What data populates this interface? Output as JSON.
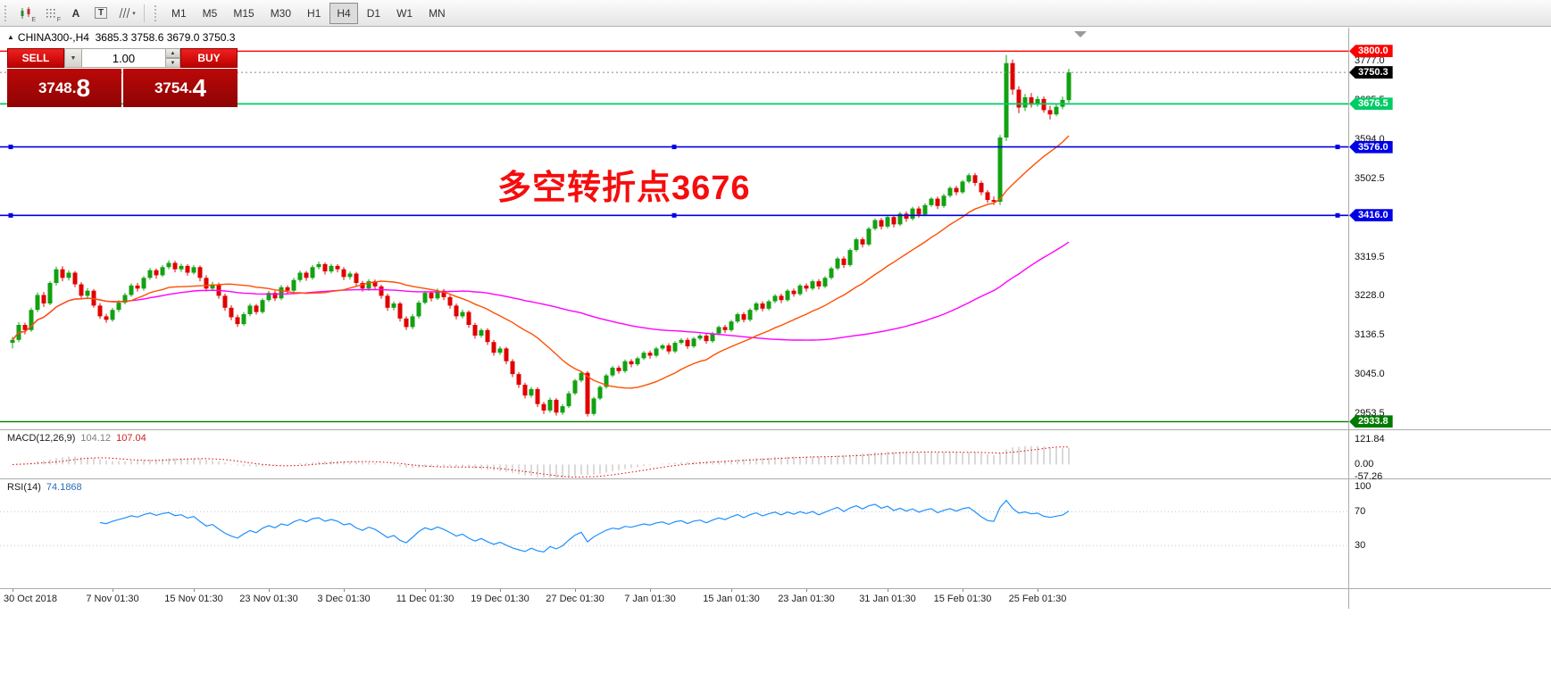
{
  "toolbar": {
    "icons": [
      {
        "name": "candlestick-chart-icon",
        "sub": "E"
      },
      {
        "name": "grid-icon",
        "sub": "F"
      },
      {
        "name": "text-label-icon",
        "glyph": "A"
      },
      {
        "name": "text-box-icon",
        "glyph": "T"
      },
      {
        "name": "cycle-lines-icon",
        "caret": true
      }
    ],
    "timeframes": [
      "M1",
      "M5",
      "M15",
      "M30",
      "H1",
      "H4",
      "D1",
      "W1",
      "MN"
    ],
    "active_timeframe": "H4"
  },
  "trade_panel": {
    "sell_label": "SELL",
    "buy_label": "BUY",
    "volume": "1.00",
    "bid": "3748.",
    "bid_big": "8",
    "ask": "3754.",
    "ask_big": "4"
  },
  "chart": {
    "symbol_period": "CHINA300-,H4",
    "ohlc_text": "3685.3 3758.6 3679.0 3750.3",
    "annotation": "多空转折点3676",
    "colors": {
      "up": "#12a112",
      "down": "#e00000",
      "ma_fast": "#ff4f00",
      "ma_slow": "#ff00ff"
    },
    "ma": {
      "fast_period": 20,
      "slow_period": 70
    },
    "price_axis_ticks": [
      {
        "v": 3777.0,
        "label": "3777.0"
      },
      {
        "v": 3685.5,
        "label": "3685.5"
      },
      {
        "v": 3594.0,
        "label": "3594.0"
      },
      {
        "v": 3502.5,
        "label": "3502.5"
      },
      {
        "v": 3319.5,
        "label": "3319.5"
      },
      {
        "v": 3228.0,
        "label": "3228.0"
      },
      {
        "v": 3136.5,
        "label": "3136.5"
      },
      {
        "v": 3045.0,
        "label": "3045.0"
      },
      {
        "v": 2953.5,
        "label": "2953.5"
      }
    ],
    "lines": [
      {
        "v": 3800.0,
        "label": "3800.0",
        "color": "#ff0000",
        "width": 1.4,
        "handles": false
      },
      {
        "v": 3676.5,
        "label": "3676.5",
        "color": "#00cc66",
        "width": 1.7,
        "handles": false
      },
      {
        "v": 3576.0,
        "label": "3576.0",
        "color": "#0000e6",
        "width": 1.6,
        "handles": true
      },
      {
        "v": 3416.0,
        "label": "3416.0",
        "color": "#0000e6",
        "width": 1.6,
        "handles": true
      },
      {
        "v": 2933.8,
        "label": "2933.8",
        "color": "#007a00",
        "width": 1.4,
        "handles": false
      }
    ],
    "current_price": {
      "v": 3750.3,
      "label": "3750.3",
      "color": "#000000"
    },
    "time_axis": [
      {
        "i": 0,
        "label": "30 Oct 2018"
      },
      {
        "i": 16,
        "label": "7 Nov 01:30"
      },
      {
        "i": 29,
        "label": "15 Nov 01:30"
      },
      {
        "i": 41,
        "label": "23 Nov 01:30"
      },
      {
        "i": 53,
        "label": "3 Dec 01:30"
      },
      {
        "i": 66,
        "label": "11 Dec 01:30"
      },
      {
        "i": 78,
        "label": "19 Dec 01:30"
      },
      {
        "i": 90,
        "label": "27 Dec 01:30"
      },
      {
        "i": 102,
        "label": "7 Jan 01:30"
      },
      {
        "i": 115,
        "label": "15 Jan 01:30"
      },
      {
        "i": 127,
        "label": "23 Jan 01:30"
      },
      {
        "i": 140,
        "label": "31 Jan 01:30"
      },
      {
        "i": 152,
        "label": "15 Feb 01:30"
      },
      {
        "i": 164,
        "label": "25 Feb 01:30"
      }
    ],
    "candles": [
      [
        3118,
        3132,
        3105,
        3125
      ],
      [
        3125,
        3166,
        3120,
        3160
      ],
      [
        3160,
        3165,
        3138,
        3148
      ],
      [
        3148,
        3200,
        3144,
        3195
      ],
      [
        3195,
        3236,
        3190,
        3230
      ],
      [
        3230,
        3237,
        3202,
        3210
      ],
      [
        3210,
        3262,
        3206,
        3258
      ],
      [
        3258,
        3296,
        3252,
        3290
      ],
      [
        3290,
        3297,
        3262,
        3270
      ],
      [
        3270,
        3288,
        3264,
        3282
      ],
      [
        3282,
        3286,
        3248,
        3255
      ],
      [
        3255,
        3260,
        3222,
        3228
      ],
      [
        3228,
        3246,
        3222,
        3240
      ],
      [
        3240,
        3244,
        3200,
        3205
      ],
      [
        3205,
        3211,
        3174,
        3180
      ],
      [
        3180,
        3186,
        3165,
        3172
      ],
      [
        3172,
        3200,
        3168,
        3195
      ],
      [
        3195,
        3218,
        3190,
        3212
      ],
      [
        3212,
        3235,
        3208,
        3230
      ],
      [
        3230,
        3257,
        3226,
        3252
      ],
      [
        3252,
        3258,
        3238,
        3245
      ],
      [
        3245,
        3274,
        3240,
        3270
      ],
      [
        3270,
        3293,
        3266,
        3288
      ],
      [
        3288,
        3292,
        3268,
        3276
      ],
      [
        3276,
        3300,
        3272,
        3295
      ],
      [
        3295,
        3311,
        3290,
        3305
      ],
      [
        3305,
        3310,
        3283,
        3290
      ],
      [
        3290,
        3303,
        3284,
        3298
      ],
      [
        3298,
        3302,
        3275,
        3282
      ],
      [
        3282,
        3300,
        3278,
        3295
      ],
      [
        3295,
        3299,
        3262,
        3270
      ],
      [
        3270,
        3276,
        3238,
        3245
      ],
      [
        3245,
        3261,
        3240,
        3255
      ],
      [
        3255,
        3259,
        3221,
        3228
      ],
      [
        3228,
        3233,
        3193,
        3200
      ],
      [
        3200,
        3206,
        3171,
        3178
      ],
      [
        3178,
        3184,
        3155,
        3162
      ],
      [
        3162,
        3190,
        3158,
        3185
      ],
      [
        3185,
        3210,
        3180,
        3205
      ],
      [
        3205,
        3209,
        3184,
        3190
      ],
      [
        3190,
        3222,
        3186,
        3218
      ],
      [
        3218,
        3240,
        3214,
        3235
      ],
      [
        3235,
        3240,
        3216,
        3222
      ],
      [
        3222,
        3253,
        3218,
        3248
      ],
      [
        3248,
        3252,
        3232,
        3240
      ],
      [
        3240,
        3270,
        3236,
        3265
      ],
      [
        3265,
        3287,
        3260,
        3282
      ],
      [
        3282,
        3286,
        3263,
        3270
      ],
      [
        3270,
        3300,
        3266,
        3295
      ],
      [
        3295,
        3308,
        3290,
        3302
      ],
      [
        3302,
        3306,
        3278,
        3285
      ],
      [
        3285,
        3303,
        3280,
        3298
      ],
      [
        3298,
        3302,
        3283,
        3290
      ],
      [
        3290,
        3295,
        3265,
        3272
      ],
      [
        3272,
        3285,
        3266,
        3280
      ],
      [
        3280,
        3284,
        3250,
        3258
      ],
      [
        3258,
        3263,
        3238,
        3245
      ],
      [
        3245,
        3267,
        3240,
        3262
      ],
      [
        3262,
        3266,
        3243,
        3250
      ],
      [
        3250,
        3254,
        3221,
        3228
      ],
      [
        3228,
        3233,
        3193,
        3200
      ],
      [
        3200,
        3215,
        3194,
        3210
      ],
      [
        3210,
        3214,
        3168,
        3175
      ],
      [
        3175,
        3180,
        3148,
        3155
      ],
      [
        3155,
        3185,
        3150,
        3180
      ],
      [
        3180,
        3217,
        3175,
        3212
      ],
      [
        3212,
        3240,
        3208,
        3235
      ],
      [
        3235,
        3239,
        3215,
        3222
      ],
      [
        3222,
        3245,
        3218,
        3240
      ],
      [
        3240,
        3244,
        3218,
        3225
      ],
      [
        3225,
        3230,
        3198,
        3205
      ],
      [
        3205,
        3210,
        3173,
        3180
      ],
      [
        3180,
        3196,
        3175,
        3190
      ],
      [
        3190,
        3194,
        3153,
        3160
      ],
      [
        3160,
        3165,
        3128,
        3135
      ],
      [
        3135,
        3152,
        3130,
        3148
      ],
      [
        3148,
        3152,
        3113,
        3120
      ],
      [
        3120,
        3125,
        3088,
        3095
      ],
      [
        3095,
        3110,
        3090,
        3105
      ],
      [
        3105,
        3109,
        3068,
        3075
      ],
      [
        3075,
        3080,
        3038,
        3045
      ],
      [
        3045,
        3050,
        3013,
        3020
      ],
      [
        3020,
        3025,
        2988,
        2995
      ],
      [
        2995,
        3015,
        2990,
        3010
      ],
      [
        3010,
        3014,
        2968,
        2975
      ],
      [
        2975,
        2980,
        2952,
        2960
      ],
      [
        2960,
        2990,
        2955,
        2985
      ],
      [
        2985,
        2989,
        2948,
        2955
      ],
      [
        2955,
        2975,
        2950,
        2970
      ],
      [
        2970,
        3005,
        2966,
        3000
      ],
      [
        3000,
        3034,
        2996,
        3030
      ],
      [
        3030,
        3052,
        3026,
        3048
      ],
      [
        3048,
        3052,
        2946,
        2952
      ],
      [
        2952,
        2992,
        2948,
        2988
      ],
      [
        2988,
        3019,
        2984,
        3015
      ],
      [
        3015,
        3046,
        3011,
        3042
      ],
      [
        3042,
        3064,
        3038,
        3060
      ],
      [
        3060,
        3065,
        3046,
        3052
      ],
      [
        3052,
        3079,
        3048,
        3075
      ],
      [
        3075,
        3080,
        3061,
        3068
      ],
      [
        3068,
        3086,
        3064,
        3082
      ],
      [
        3082,
        3099,
        3078,
        3095
      ],
      [
        3095,
        3100,
        3081,
        3088
      ],
      [
        3088,
        3109,
        3084,
        3105
      ],
      [
        3105,
        3116,
        3101,
        3112
      ],
      [
        3112,
        3117,
        3092,
        3098
      ],
      [
        3098,
        3122,
        3094,
        3118
      ],
      [
        3118,
        3129,
        3114,
        3125
      ],
      [
        3125,
        3130,
        3104,
        3110
      ],
      [
        3110,
        3132,
        3106,
        3128
      ],
      [
        3128,
        3139,
        3124,
        3135
      ],
      [
        3135,
        3140,
        3116,
        3122
      ],
      [
        3122,
        3144,
        3118,
        3140
      ],
      [
        3140,
        3159,
        3136,
        3155
      ],
      [
        3155,
        3160,
        3141,
        3148
      ],
      [
        3148,
        3172,
        3144,
        3168
      ],
      [
        3168,
        3189,
        3164,
        3185
      ],
      [
        3185,
        3190,
        3166,
        3172
      ],
      [
        3172,
        3199,
        3168,
        3195
      ],
      [
        3195,
        3214,
        3191,
        3210
      ],
      [
        3210,
        3215,
        3192,
        3198
      ],
      [
        3198,
        3219,
        3194,
        3215
      ],
      [
        3215,
        3232,
        3211,
        3228
      ],
      [
        3228,
        3233,
        3211,
        3218
      ],
      [
        3218,
        3244,
        3214,
        3240
      ],
      [
        3240,
        3245,
        3226,
        3232
      ],
      [
        3232,
        3256,
        3228,
        3252
      ],
      [
        3252,
        3257,
        3238,
        3245
      ],
      [
        3245,
        3266,
        3241,
        3262
      ],
      [
        3262,
        3267,
        3243,
        3250
      ],
      [
        3250,
        3274,
        3246,
        3270
      ],
      [
        3270,
        3296,
        3266,
        3292
      ],
      [
        3292,
        3319,
        3288,
        3315
      ],
      [
        3315,
        3320,
        3293,
        3300
      ],
      [
        3300,
        3339,
        3296,
        3335
      ],
      [
        3335,
        3364,
        3331,
        3360
      ],
      [
        3360,
        3365,
        3341,
        3348
      ],
      [
        3348,
        3389,
        3344,
        3385
      ],
      [
        3385,
        3409,
        3381,
        3405
      ],
      [
        3405,
        3410,
        3383,
        3390
      ],
      [
        3390,
        3416,
        3386,
        3412
      ],
      [
        3412,
        3417,
        3388,
        3395
      ],
      [
        3395,
        3424,
        3391,
        3420
      ],
      [
        3420,
        3425,
        3401,
        3408
      ],
      [
        3408,
        3436,
        3404,
        3432
      ],
      [
        3432,
        3437,
        3411,
        3418
      ],
      [
        3418,
        3444,
        3414,
        3440
      ],
      [
        3440,
        3459,
        3436,
        3455
      ],
      [
        3455,
        3460,
        3431,
        3438
      ],
      [
        3438,
        3466,
        3434,
        3462
      ],
      [
        3462,
        3484,
        3458,
        3480
      ],
      [
        3480,
        3485,
        3463,
        3470
      ],
      [
        3470,
        3499,
        3466,
        3495
      ],
      [
        3495,
        3514,
        3491,
        3510
      ],
      [
        3510,
        3515,
        3485,
        3492
      ],
      [
        3492,
        3497,
        3463,
        3470
      ],
      [
        3470,
        3475,
        3445,
        3452
      ],
      [
        3452,
        3460,
        3440,
        3448
      ],
      [
        3448,
        3604,
        3440,
        3598
      ],
      [
        3598,
        3791,
        3590,
        3772
      ],
      [
        3772,
        3780,
        3698,
        3710
      ],
      [
        3710,
        3718,
        3655,
        3668
      ],
      [
        3668,
        3700,
        3660,
        3692
      ],
      [
        3692,
        3702,
        3668,
        3675
      ],
      [
        3675,
        3695,
        3670,
        3688
      ],
      [
        3688,
        3694,
        3656,
        3662
      ],
      [
        3662,
        3672,
        3640,
        3652
      ],
      [
        3652,
        3678,
        3648,
        3670
      ],
      [
        3670,
        3694,
        3664,
        3686
      ],
      [
        3685.3,
        3758.6,
        3679.0,
        3750.3
      ]
    ]
  },
  "macd": {
    "label": "MACD(12,26,9)",
    "value_main": "104.12",
    "value_signal": "107.04",
    "axis": [
      {
        "v": 121.84,
        "label": "121.84"
      },
      {
        "v": 0,
        "label": "0.00"
      },
      {
        "v": -57.26,
        "label": "-57.26"
      }
    ]
  },
  "rsi": {
    "label": "RSI(14)",
    "value": "74.1868",
    "levels": [
      {
        "v": 100,
        "label": "100",
        "line": false
      },
      {
        "v": 70,
        "label": "70",
        "line": true
      },
      {
        "v": 30,
        "label": "30",
        "line": true
      }
    ]
  }
}
